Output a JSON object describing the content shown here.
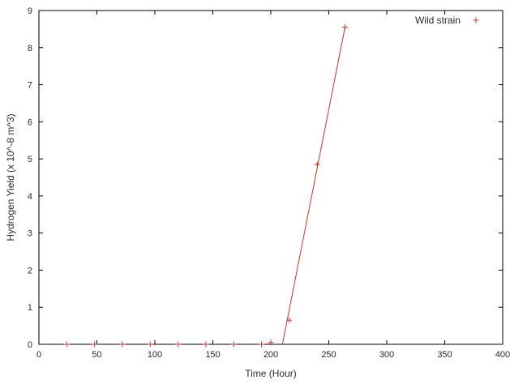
{
  "chart_data": {
    "type": "scatter",
    "title": "",
    "xlabel": "Time (Hour)",
    "ylabel": "Hydrogen Yield (x 10^-8 m^3)",
    "xlim": [
      0,
      400
    ],
    "ylim": [
      0,
      9
    ],
    "grid": false,
    "legend_position": "top-right",
    "x_ticks": [
      "0",
      "50",
      "100",
      "150",
      "200",
      "250",
      "300",
      "350",
      "400"
    ],
    "y_ticks": [
      "0",
      "1",
      "2",
      "3",
      "4",
      "5",
      "6",
      "7",
      "8",
      "9"
    ],
    "series": [
      {
        "name": "Wild strain",
        "color": "#c0392b",
        "marker": "plus",
        "x": [
          24,
          48,
          72,
          96,
          120,
          144,
          168,
          192,
          200,
          216,
          240,
          264
        ],
        "y": [
          0,
          0,
          0,
          0,
          0,
          0,
          0,
          0,
          0.05,
          0.65,
          4.85,
          8.55
        ]
      }
    ],
    "fit_line": {
      "color": "#c0392b",
      "x": [
        210,
        264
      ],
      "y": [
        0,
        8.55
      ]
    }
  }
}
